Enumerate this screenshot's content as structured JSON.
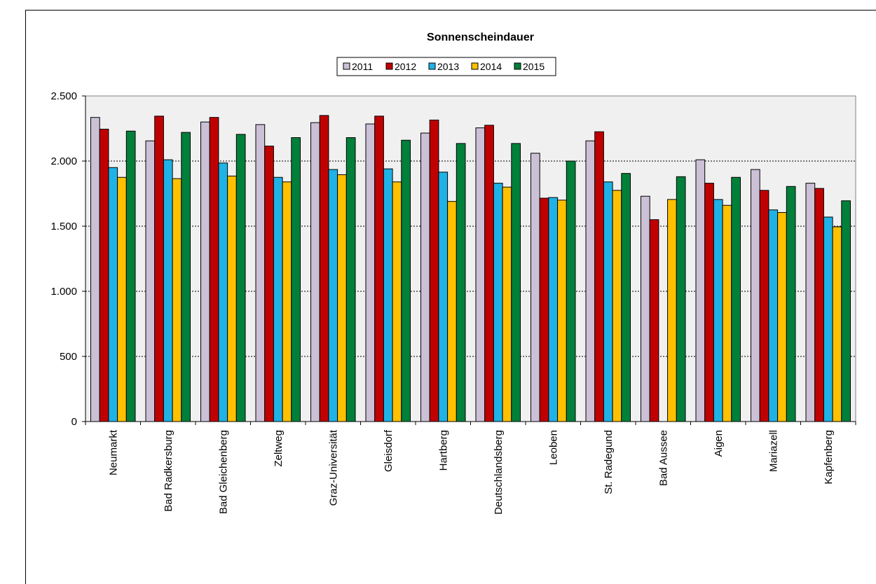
{
  "chart_data": {
    "type": "bar",
    "title": "Sonnenscheindauer",
    "xlabel": "",
    "ylabel": "",
    "ylim": [
      0,
      2500
    ],
    "yticks": [
      {
        "value": 0,
        "label": "0"
      },
      {
        "value": 500,
        "label": "500"
      },
      {
        "value": 1000,
        "label": "1.000"
      },
      {
        "value": 1500,
        "label": "1.500"
      },
      {
        "value": 2000,
        "label": "2.000"
      },
      {
        "value": 2500,
        "label": "2.500"
      }
    ],
    "grid": true,
    "legend_position": "top-center",
    "categories": [
      "Neumarkt",
      "Bad Radkersburg",
      "Bad Gleichenberg",
      "Zeltweg",
      "Graz-Universität",
      "Gleisdorf",
      "Hartberg",
      "Deutschlandsberg",
      "Leoben",
      "St. Radegund",
      "Bad Aussee",
      "Aigen",
      "Mariazell",
      "Kapfenberg"
    ],
    "series": [
      {
        "name": "2011",
        "color": "#cbc0d6",
        "values": [
          2335,
          2155,
          2300,
          2280,
          2295,
          2285,
          2215,
          2255,
          2060,
          2155,
          1730,
          2010,
          1935,
          1830
        ]
      },
      {
        "name": "2012",
        "color": "#c00000",
        "values": [
          2245,
          2345,
          2335,
          2115,
          2350,
          2345,
          2315,
          2275,
          1715,
          2225,
          1550,
          1830,
          1775,
          1790
        ]
      },
      {
        "name": "2013",
        "color": "#1fb2e6",
        "values": [
          1950,
          2010,
          1985,
          1875,
          1935,
          1940,
          1915,
          1830,
          1720,
          1840,
          null,
          1705,
          1625,
          1570
        ]
      },
      {
        "name": "2014",
        "color": "#ffc000",
        "values": [
          1875,
          1865,
          1885,
          1840,
          1895,
          1840,
          1690,
          1800,
          1700,
          1775,
          1705,
          1660,
          1605,
          1495
        ]
      },
      {
        "name": "2015",
        "color": "#00803a",
        "values": [
          2230,
          2220,
          2205,
          2180,
          2180,
          2160,
          2135,
          2135,
          2000,
          1905,
          1880,
          1875,
          1805,
          1695
        ]
      }
    ]
  }
}
